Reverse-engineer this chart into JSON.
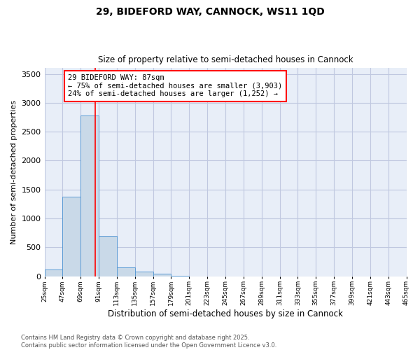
{
  "title_line1": "29, BIDEFORD WAY, CANNOCK, WS11 1QD",
  "title_line2": "Size of property relative to semi-detached houses in Cannock",
  "xlabel": "Distribution of semi-detached houses by size in Cannock",
  "ylabel": "Number of semi-detached properties",
  "bar_edges": [
    25,
    47,
    69,
    91,
    113,
    135,
    157,
    179,
    201,
    223,
    245,
    267,
    289,
    311,
    333,
    355,
    377,
    399,
    421,
    443,
    465
  ],
  "bar_values": [
    120,
    1370,
    2780,
    700,
    155,
    80,
    40,
    10,
    0,
    0,
    0,
    0,
    0,
    0,
    0,
    0,
    0,
    0,
    0,
    0
  ],
  "bar_color": "#c9d9e8",
  "bar_edge_color": "#5b9bd5",
  "grid_color": "#c0c8e0",
  "background_color": "#e8eef8",
  "red_line_x": 87,
  "annotation_line1": "29 BIDEFORD WAY: 87sqm",
  "annotation_line2": "← 75% of semi-detached houses are smaller (3,903)",
  "annotation_line3": "24% of semi-detached houses are larger (1,252) →",
  "annotation_box_color": "white",
  "annotation_box_edge": "red",
  "annotation_fontsize": 7.5,
  "footer_text": "Contains HM Land Registry data © Crown copyright and database right 2025.\nContains public sector information licensed under the Open Government Licence v3.0.",
  "ylim": [
    0,
    3600
  ],
  "yticks": [
    0,
    500,
    1000,
    1500,
    2000,
    2500,
    3000,
    3500
  ],
  "tick_labels": [
    "25sqm",
    "47sqm",
    "69sqm",
    "91sqm",
    "113sqm",
    "135sqm",
    "157sqm",
    "179sqm",
    "201sqm",
    "223sqm",
    "245sqm",
    "267sqm",
    "289sqm",
    "311sqm",
    "333sqm",
    "355sqm",
    "377sqm",
    "399sqm",
    "421sqm",
    "443sqm",
    "465sqm"
  ],
  "title_fontsize": 10,
  "subtitle_fontsize": 8.5
}
